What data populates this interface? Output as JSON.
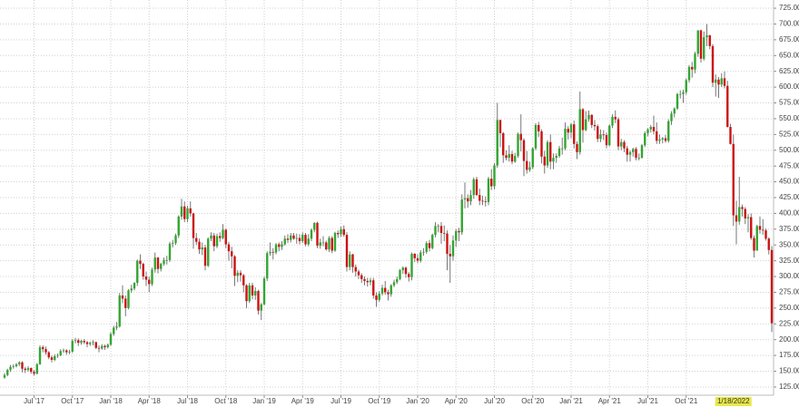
{
  "chart_data": {
    "type": "candlestick",
    "open": [
      140,
      144,
      152,
      157,
      158,
      161,
      164,
      154,
      152,
      155,
      149,
      146,
      161,
      188,
      185,
      180,
      172,
      168,
      174,
      175,
      182,
      183,
      180,
      181,
      198,
      199,
      195,
      198,
      196,
      193,
      195,
      196,
      187,
      186,
      190,
      188,
      192,
      209,
      219,
      221,
      270,
      265,
      250,
      278,
      281,
      290,
      325,
      320,
      300,
      295,
      288,
      311,
      330,
      312,
      320,
      326,
      326,
      352,
      353,
      365,
      395,
      411,
      391,
      408,
      400,
      361,
      355,
      343,
      346,
      317,
      360,
      365,
      348,
      364,
      361,
      374,
      351,
      340,
      332,
      301,
      306,
      302,
      286,
      261,
      286,
      270,
      277,
      246,
      256,
      297,
      337,
      339,
      338,
      351,
      347,
      351,
      360,
      358,
      365,
      360,
      361,
      356,
      366,
      351,
      360,
      374,
      385,
      349,
      354,
      354,
      343,
      361,
      341,
      369,
      367,
      375,
      366,
      315,
      335,
      315,
      308,
      302,
      296,
      293,
      291,
      294,
      270,
      263,
      273,
      282,
      275,
      272,
      286,
      291,
      296,
      310,
      314,
      304,
      299,
      336,
      329,
      325,
      338,
      339,
      353,
      345,
      366,
      380,
      380,
      369,
      368,
      336,
      332,
      357,
      372,
      370,
      422,
      424,
      419,
      429,
      454,
      429,
      420,
      419,
      418,
      455,
      443,
      476,
      548,
      527,
      492,
      488,
      494,
      482,
      491,
      526,
      516,
      483,
      469,
      473,
      503,
      540,
      530,
      490,
      476,
      513,
      482,
      488,
      491,
      503,
      503,
      534,
      528,
      541,
      510,
      497,
      565,
      532,
      549,
      556,
      540,
      538,
      518,
      525,
      524,
      508,
      539,
      553,
      549,
      506,
      513,
      503,
      493,
      497,
      502,
      488,
      488,
      508,
      527,
      533,
      537,
      530,
      515,
      517,
      519,
      515,
      546,
      558,
      566,
      589,
      589,
      592,
      611,
      632,
      628,
      653,
      690,
      645,
      679,
      682,
      665,
      607,
      612,
      604,
      614,
      602,
      537,
      510,
      397,
      387,
      410,
      407,
      392,
      394,
      361,
      341,
      380,
      374,
      373,
      360,
      342
    ],
    "high": [
      147,
      154,
      160,
      161,
      163,
      166,
      166,
      157,
      158,
      156,
      152,
      163,
      191,
      191,
      189,
      182,
      175,
      177,
      178,
      185,
      186,
      185,
      184,
      201,
      203,
      202,
      200,
      201,
      198,
      197,
      199,
      197,
      191,
      193,
      192,
      194,
      212,
      222,
      228,
      274,
      286,
      270,
      280,
      287,
      291,
      327,
      335,
      322,
      308,
      300,
      314,
      338,
      331,
      322,
      330,
      333,
      355,
      358,
      368,
      397,
      423,
      419,
      412,
      419,
      401,
      369,
      360,
      354,
      350,
      362,
      370,
      369,
      368,
      370,
      383,
      376,
      355,
      347,
      334,
      310,
      310,
      304,
      288,
      290,
      290,
      283,
      279,
      258,
      300,
      340,
      354,
      345,
      353,
      354,
      356,
      365,
      367,
      369,
      369,
      368,
      367,
      370,
      369,
      367,
      376,
      386,
      387,
      360,
      364,
      357,
      364,
      364,
      371,
      373,
      379,
      381,
      370,
      340,
      336,
      319,
      311,
      305,
      300,
      298,
      298,
      298,
      275,
      277,
      287,
      293,
      279,
      288,
      295,
      300,
      312,
      316,
      316,
      307,
      338,
      337,
      335,
      342,
      345,
      356,
      358,
      368,
      386,
      383,
      386,
      381,
      373,
      350,
      365,
      375,
      377,
      430,
      449,
      430,
      437,
      457,
      458,
      439,
      428,
      427,
      458,
      470,
      480,
      575,
      548,
      529,
      500,
      508,
      499,
      496,
      528,
      557,
      519,
      499,
      482,
      505,
      543,
      545,
      533,
      499,
      516,
      525,
      495,
      495,
      507,
      520,
      544,
      538,
      543,
      547,
      514,
      593,
      567,
      562,
      563,
      557,
      548,
      541,
      533,
      532,
      528,
      541,
      557,
      563,
      552,
      518,
      516,
      507,
      500,
      504,
      505,
      495,
      510,
      530,
      535,
      540,
      555,
      544,
      525,
      521,
      524,
      549,
      562,
      568,
      591,
      595,
      596,
      614,
      635,
      640,
      656,
      690,
      691,
      688,
      700,
      683,
      668,
      620,
      616,
      622,
      625,
      610,
      542,
      525,
      420,
      458,
      414,
      410,
      399,
      400,
      365,
      382,
      395,
      391,
      376,
      362,
      348
    ],
    "low": [
      138,
      142,
      149,
      154,
      156,
      158,
      148,
      147,
      149,
      146,
      143,
      145,
      160,
      180,
      176,
      169,
      164,
      166,
      171,
      174,
      179,
      176,
      177,
      179,
      194,
      190,
      192,
      193,
      188,
      190,
      191,
      185,
      180,
      184,
      184,
      186,
      190,
      206,
      215,
      219,
      258,
      237,
      248,
      274,
      278,
      285,
      312,
      295,
      285,
      275,
      285,
      306,
      305,
      308,
      317,
      319,
      323,
      346,
      350,
      361,
      390,
      386,
      386,
      395,
      344,
      350,
      336,
      334,
      310,
      315,
      356,
      340,
      345,
      355,
      359,
      345,
      325,
      313,
      285,
      291,
      292,
      275,
      250,
      258,
      264,
      263,
      240,
      231,
      254,
      293,
      333,
      327,
      335,
      340,
      342,
      349,
      353,
      354,
      358,
      352,
      351,
      353,
      348,
      348,
      356,
      370,
      345,
      344,
      348,
      341,
      339,
      337,
      339,
      361,
      363,
      363,
      308,
      310,
      306,
      300,
      296,
      290,
      286,
      284,
      286,
      265,
      252,
      260,
      270,
      271,
      262,
      268,
      283,
      288,
      294,
      304,
      298,
      292,
      294,
      323,
      321,
      322,
      333,
      336,
      340,
      343,
      362,
      370,
      352,
      356,
      310,
      290,
      325,
      347,
      356,
      366,
      408,
      409,
      413,
      423,
      428,
      413,
      413,
      411,
      413,
      437,
      438,
      472,
      505,
      480,
      484,
      482,
      478,
      480,
      488,
      498,
      459,
      463,
      466,
      470,
      500,
      521,
      479,
      463,
      472,
      470,
      470,
      480,
      488,
      493,
      500,
      517,
      519,
      503,
      486,
      493,
      512,
      530,
      545,
      535,
      531,
      513,
      513,
      516,
      503,
      506,
      535,
      543,
      500,
      500,
      497,
      482,
      482,
      490,
      484,
      484,
      487,
      505,
      522,
      528,
      525,
      510,
      510,
      511,
      512,
      512,
      540,
      552,
      564,
      582,
      575,
      588,
      607,
      615,
      622,
      648,
      639,
      642,
      665,
      660,
      600,
      585,
      583,
      600,
      598,
      536,
      509,
      380,
      351,
      382,
      395,
      383,
      370,
      358,
      330,
      341,
      368,
      366,
      357,
      335,
      212
    ],
    "close": [
      144,
      152,
      157,
      158,
      161,
      164,
      154,
      152,
      155,
      149,
      146,
      161,
      188,
      185,
      180,
      172,
      168,
      174,
      175,
      182,
      183,
      180,
      181,
      198,
      199,
      195,
      198,
      196,
      193,
      195,
      196,
      187,
      186,
      190,
      188,
      192,
      209,
      219,
      221,
      270,
      265,
      250,
      278,
      281,
      290,
      325,
      320,
      300,
      295,
      288,
      311,
      330,
      312,
      320,
      326,
      326,
      352,
      353,
      365,
      395,
      411,
      391,
      408,
      400,
      361,
      355,
      343,
      346,
      317,
      360,
      365,
      348,
      364,
      361,
      374,
      351,
      340,
      332,
      301,
      306,
      302,
      286,
      261,
      286,
      270,
      277,
      246,
      256,
      297,
      337,
      339,
      338,
      351,
      347,
      351,
      360,
      358,
      365,
      360,
      361,
      356,
      366,
      351,
      360,
      374,
      385,
      349,
      354,
      354,
      343,
      361,
      341,
      369,
      367,
      375,
      366,
      315,
      335,
      315,
      308,
      302,
      296,
      293,
      291,
      294,
      270,
      263,
      273,
      282,
      275,
      272,
      286,
      291,
      296,
      310,
      314,
      304,
      299,
      336,
      329,
      325,
      338,
      339,
      353,
      345,
      366,
      380,
      380,
      369,
      368,
      336,
      332,
      357,
      372,
      370,
      422,
      424,
      419,
      429,
      454,
      429,
      420,
      419,
      418,
      455,
      443,
      476,
      548,
      527,
      492,
      488,
      494,
      482,
      491,
      526,
      516,
      483,
      469,
      473,
      503,
      540,
      530,
      490,
      476,
      513,
      482,
      488,
      491,
      503,
      503,
      534,
      528,
      541,
      510,
      497,
      565,
      532,
      549,
      556,
      540,
      538,
      518,
      525,
      524,
      508,
      539,
      553,
      549,
      506,
      513,
      503,
      493,
      497,
      502,
      488,
      488,
      508,
      527,
      533,
      537,
      530,
      515,
      517,
      519,
      515,
      546,
      558,
      566,
      589,
      589,
      592,
      611,
      632,
      628,
      653,
      690,
      645,
      679,
      682,
      665,
      607,
      612,
      604,
      614,
      602,
      537,
      510,
      397,
      387,
      410,
      407,
      392,
      394,
      361,
      341,
      380,
      374,
      373,
      360,
      342,
      226
    ],
    "up_color": "#33a532",
    "down_color": "#cc1111",
    "wick_color": "#777777",
    "ylim": [
      112,
      738
    ],
    "yticks": [
      {
        "value": 125,
        "label": "125.00"
      },
      {
        "value": 150,
        "label": "150.00"
      },
      {
        "value": 175,
        "label": "175.00"
      },
      {
        "value": 200,
        "label": "200.00"
      },
      {
        "value": 225,
        "label": "225.00"
      },
      {
        "value": 250,
        "label": "250.00"
      },
      {
        "value": 275,
        "label": "275.00"
      },
      {
        "value": 300,
        "label": "300.00"
      },
      {
        "value": 325,
        "label": "325.00"
      },
      {
        "value": 350,
        "label": "350.00"
      },
      {
        "value": 375,
        "label": "375.00"
      },
      {
        "value": 400,
        "label": "400.00"
      },
      {
        "value": 425,
        "label": "425.00"
      },
      {
        "value": 450,
        "label": "450.00"
      },
      {
        "value": 475,
        "label": "475.00"
      },
      {
        "value": 500,
        "label": "500.00"
      },
      {
        "value": 525,
        "label": "525.00"
      },
      {
        "value": 550,
        "label": "550.00"
      },
      {
        "value": 575,
        "label": "575.00"
      },
      {
        "value": 600,
        "label": "600.00"
      },
      {
        "value": 625,
        "label": "625.00"
      },
      {
        "value": 650,
        "label": "650.00"
      },
      {
        "value": 675,
        "label": "675.00"
      },
      {
        "value": 700,
        "label": "700.00"
      },
      {
        "value": 725,
        "label": "725.00"
      }
    ],
    "xticks": [
      {
        "value": 10,
        "label": "Jul '17"
      },
      {
        "value": 23,
        "label": "Oct '17"
      },
      {
        "value": 36,
        "label": "Jan '18"
      },
      {
        "value": 49,
        "label": "Apr '18"
      },
      {
        "value": 62,
        "label": "Jul '18"
      },
      {
        "value": 75,
        "label": "Oct '18"
      },
      {
        "value": 88,
        "label": "Jan '19"
      },
      {
        "value": 101,
        "label": "Apr '19"
      },
      {
        "value": 114,
        "label": "Jul '19"
      },
      {
        "value": 127,
        "label": "Oct '19"
      },
      {
        "value": 140,
        "label": "Jan '20"
      },
      {
        "value": 153,
        "label": "Apr '20"
      },
      {
        "value": 166,
        "label": "Jul '20"
      },
      {
        "value": 179,
        "label": "Oct '20"
      },
      {
        "value": 192,
        "label": "Jan '21"
      },
      {
        "value": 205,
        "label": "Apr '21"
      },
      {
        "value": 218,
        "label": "Jul '21"
      },
      {
        "value": 231,
        "label": "Oct '21"
      }
    ],
    "crosshair_label": {
      "value": 247,
      "label": "1/18/2022"
    },
    "grid": true
  }
}
